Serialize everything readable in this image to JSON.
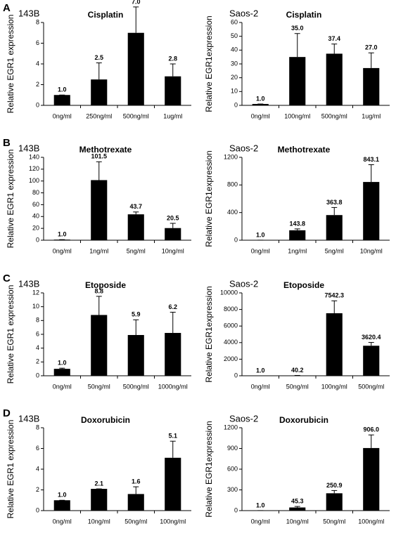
{
  "chart_data": [
    {
      "type": "bar",
      "panel": "A",
      "cell_line": "143B",
      "title": "Cisplatin",
      "ylabel": "Relative EGR1 expression",
      "color": "#000000",
      "categories": [
        "0ng/ml",
        "250ng/ml",
        "500ng/ml",
        "1ug/ml"
      ],
      "values": [
        1.0,
        2.5,
        7.0,
        2.8
      ],
      "value_labels": [
        "1.0",
        "2.5",
        "7.0",
        "2.8"
      ],
      "errors": [
        0,
        1.6,
        2.5,
        1.2
      ],
      "ylim": [
        0,
        8
      ],
      "yticks": [
        0,
        2,
        4,
        6,
        8
      ]
    },
    {
      "type": "bar",
      "cell_line": "Saos-2",
      "title": "Cisplatin",
      "ylabel": "Relative EGR1expression",
      "color": "#000000",
      "categories": [
        "0ng/ml",
        "100ng/ml",
        "500ng/ml",
        "1ug/ml"
      ],
      "values": [
        1.0,
        35.0,
        37.4,
        27.0
      ],
      "value_labels": [
        "1.0",
        "35.0",
        "37.4",
        "27.0"
      ],
      "errors": [
        0,
        17,
        7,
        11
      ],
      "ylim": [
        0,
        60
      ],
      "yticks": [
        0,
        10,
        20,
        30,
        40,
        50,
        60
      ]
    },
    {
      "type": "bar",
      "panel": "B",
      "cell_line": "143B",
      "title": "Methotrexate",
      "ylabel": "Relative EGR1 expression",
      "color": "#000000",
      "categories": [
        "0ng/ml",
        "1ng/ml",
        "5ng/ml",
        "10ng/ml"
      ],
      "values": [
        1.0,
        101.5,
        43.7,
        20.5
      ],
      "value_labels": [
        "1.0",
        "101.5",
        "43.7",
        "20.5"
      ],
      "errors": [
        0,
        31,
        4,
        8
      ],
      "ylim": [
        0,
        140
      ],
      "yticks": [
        0,
        20,
        40,
        60,
        80,
        100,
        120,
        140
      ]
    },
    {
      "type": "bar",
      "cell_line": "Saos-2",
      "title": "Methotrexate",
      "ylabel": "Relative EGR1expression",
      "color": "#000000",
      "categories": [
        "0ng/ml",
        "1ng/ml",
        "5ng/ml",
        "10ng/ml"
      ],
      "values": [
        1.0,
        143.8,
        363.8,
        843.1
      ],
      "value_labels": [
        "1.0",
        "143.8",
        "363.8",
        "843.1"
      ],
      "errors": [
        0,
        20,
        110,
        250
      ],
      "ylim": [
        0,
        1200
      ],
      "yticks": [
        0,
        400,
        800,
        1200
      ]
    },
    {
      "type": "bar",
      "panel": "C",
      "cell_line": "143B",
      "title": "Etoposide",
      "ylabel": "Relative EGR1 expression",
      "color": "#000000",
      "categories": [
        "0ng/ml",
        "50ng/ml",
        "500ng/ml",
        "1000ng/ml"
      ],
      "values": [
        1.0,
        8.8,
        5.9,
        6.2
      ],
      "value_labels": [
        "1.0",
        "8.8",
        "5.9",
        "6.2"
      ],
      "errors": [
        0.1,
        2.7,
        2.2,
        3.0
      ],
      "ylim": [
        0,
        12
      ],
      "yticks": [
        0,
        2,
        4,
        6,
        8,
        10,
        12
      ]
    },
    {
      "type": "bar",
      "cell_line": "Saos-2",
      "title": "Etoposide",
      "ylabel": "Relative EGR1expression",
      "color": "#000000",
      "categories": [
        "0ng/ml",
        "50ng/ml",
        "100ng/ml",
        "500ng/ml"
      ],
      "values": [
        1.0,
        40.2,
        7542.3,
        3620.4
      ],
      "value_labels": [
        "1.0",
        "40.2",
        "7542.3",
        "3620.4"
      ],
      "errors": [
        0,
        0,
        1500,
        400
      ],
      "ylim": [
        0,
        10000
      ],
      "yticks": [
        0,
        2000,
        4000,
        6000,
        8000,
        10000
      ]
    },
    {
      "type": "bar",
      "panel": "D",
      "cell_line": "143B",
      "title": "Doxorubicin",
      "ylabel": "Relative EGR1 expression",
      "color": "#000000",
      "categories": [
        "0ng/ml",
        "10ng/ml",
        "50ng/ml",
        "100ng/ml"
      ],
      "values": [
        1.0,
        2.1,
        1.6,
        5.1
      ],
      "value_labels": [
        "1.0",
        "2.1",
        "1.6",
        "5.1"
      ],
      "errors": [
        0,
        0,
        0.7,
        1.6
      ],
      "ylim": [
        0,
        8
      ],
      "yticks": [
        0,
        2,
        4,
        6,
        8
      ]
    },
    {
      "type": "bar",
      "cell_line": "Saos-2",
      "title": "Doxorubicin",
      "ylabel": "Relative EGR1expression",
      "color": "#000000",
      "categories": [
        "0ng/ml",
        "10ng/ml",
        "50ng/ml",
        "100ng/ml"
      ],
      "values": [
        1.0,
        45.3,
        250.9,
        906.0
      ],
      "value_labels": [
        "1.0",
        "45.3",
        "250.9",
        "906.0"
      ],
      "errors": [
        0,
        15,
        40,
        190
      ],
      "ylim": [
        0,
        1200
      ],
      "yticks": [
        0,
        300,
        600,
        900,
        1200
      ]
    }
  ]
}
